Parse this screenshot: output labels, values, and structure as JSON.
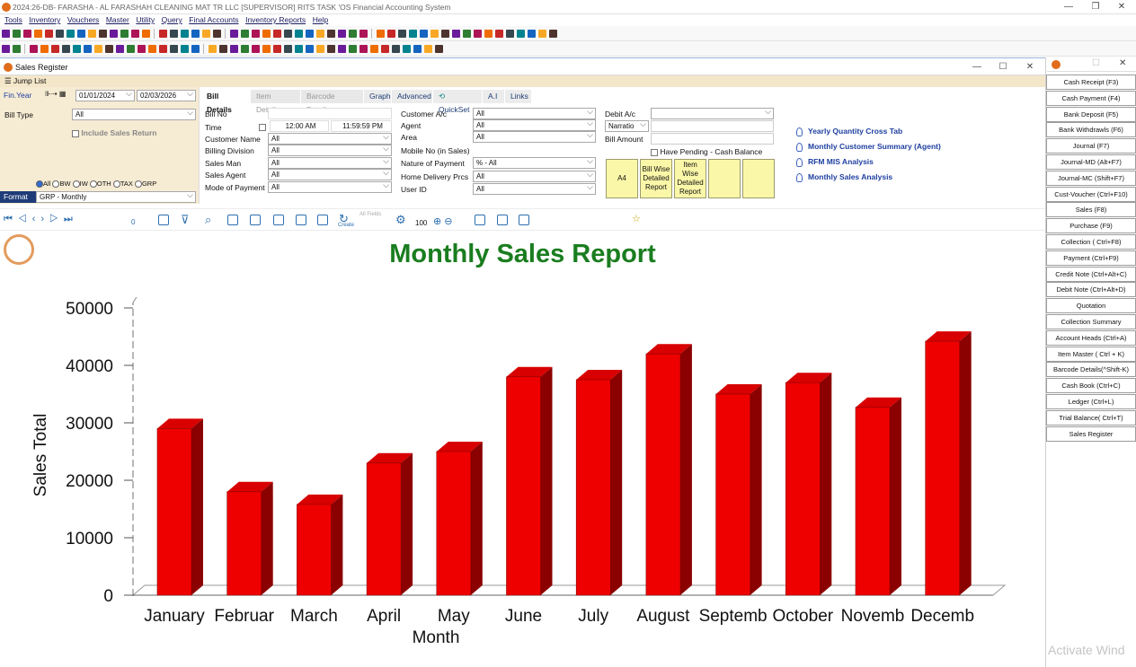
{
  "app": {
    "title": "2024:26-DB- FARASHA - AL FARASHAH CLEANING MAT TR LLC [SUPERVISOR]    RITS TASK 'OS Financial Accounting System",
    "menu": [
      "Tools",
      "Inventory",
      "Vouchers",
      "Master",
      "Utility",
      "Query",
      "Final Accounts",
      "Inventory Reports",
      "Help"
    ]
  },
  "window": {
    "title": "Sales Register",
    "jump_list": "Jump List"
  },
  "left_panel": {
    "fin_year": "Fin.Year",
    "date_from": "01/01/2024",
    "date_to": "02/03/2026",
    "bill_type_label": "Bill Type",
    "bill_type_value": "All",
    "include_sales_return": "Include Sales Return",
    "radios": [
      "All",
      "BW",
      "IW",
      "OTH",
      "TAX",
      "GRP"
    ],
    "format_label": "Format",
    "format_value": "GRP - Monthly"
  },
  "tabs": [
    "Bill Details",
    "Item Details",
    "Barcode Details",
    "Graph",
    "Advanced",
    "QuickSet",
    "A.I",
    "Links"
  ],
  "form": {
    "col1": {
      "bill_no": "Bill No",
      "time": "Time",
      "time_from": "12:00 AM",
      "time_to": "11:59:59 PM",
      "customer_name": "Customer Name",
      "billing_division": "Billing Division",
      "sales_man": "Sales Man",
      "sales_agent": "Sales Agent",
      "mode_of_payment": "Mode of Payment",
      "all": "All"
    },
    "col2": {
      "customer_ac": "Customer A/c",
      "agent": "Agent",
      "area": "Area",
      "mobile_no": "Mobile No (in Sales)",
      "nature_of_payment": "Nature of Payment",
      "nature_value": "% - All",
      "home_delivery": "Home Delivery Prcs",
      "user_id": "User ID",
      "all": "All"
    },
    "col3": {
      "debit_ac": "Debit A/c",
      "narration": "Narratio",
      "bill_amount": "Bill Amount",
      "have_pending": "Have Pending - Cash Balance"
    },
    "yellow_buttons": [
      "A4",
      "Bill Wise Detailed Report",
      "Item Wise Detailed Report",
      "",
      ""
    ],
    "links": [
      "Yearly Quantity Cross Tab",
      "Monthly Customer Summary (Agent)",
      "RFM MIS Analysis",
      "Monthly Sales Analysis"
    ]
  },
  "navbar": {
    "counter": "0",
    "zoom": "100",
    "create": "Create",
    "filter_label": "All Fields"
  },
  "right_panel": [
    "Cash Receipt (F3)",
    "Cash Payment (F4)",
    "Bank Deposit (F5)",
    "Bank Withdrawls (F6)",
    "Journal (F7)",
    "Journal-MD (Alt+F7)",
    "Journal-MC (Shift+F7)",
    "Cust-Voucher (Ctrl+F10)",
    "Sales (F8)",
    "Purchase (F9)",
    "Collection ( Ctrl+F8)",
    "Payment (Ctrl+F9)",
    "Credit Note (Ctrl+Alt+C)",
    "Debit Note (Ctrl+Alt+D)",
    "Quotation",
    "Collection Summary",
    "Account Heads (Ctrl+A)",
    "Item Master ( Ctrl + K)",
    "Barcode Details(^Shift-K)",
    "Cash Book (Ctrl+C)",
    "Ledger (Ctrl+L)",
    "Trial Balance( Ctrl+T)",
    "Sales Register"
  ],
  "watermark": "Activate Wind",
  "chart_data": {
    "type": "bar",
    "title": "Monthly Sales Report",
    "xlabel": "Month",
    "ylabel": "Sales Total",
    "categories": [
      "January",
      "Februar",
      "March",
      "April",
      "May",
      "June",
      "July",
      "August",
      "Septemb",
      "October",
      "Novemb",
      "Decemb"
    ],
    "values": [
      29000,
      18000,
      15800,
      23000,
      25000,
      38000,
      37500,
      42000,
      35000,
      37000,
      32700,
      44200
    ],
    "ylim": [
      0,
      50000
    ],
    "yticks": [
      "50000",
      "40000",
      "30000",
      "20000",
      "10000",
      "0"
    ],
    "colors": {
      "bar": "#ee0000",
      "bar_side": "#8b0000",
      "bar_top": "#d80000",
      "title": "#1a7d1f"
    }
  }
}
